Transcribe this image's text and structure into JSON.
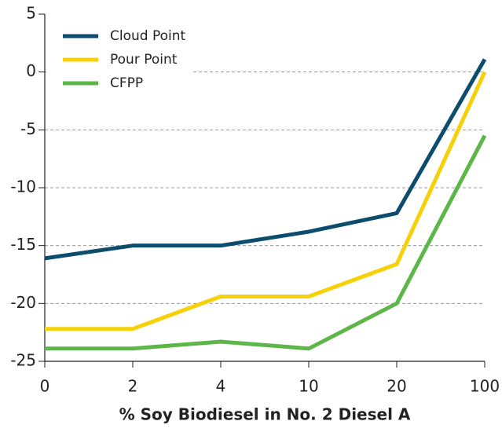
{
  "chart_data": {
    "type": "line",
    "x_label": "% Soy Biodiesel in No. 2 Diesel A",
    "categories": [
      "0",
      "2",
      "4",
      "10",
      "20",
      "100"
    ],
    "series": [
      {
        "name": "Cloud Point",
        "color": "#0c4d6d",
        "values": [
          -16.1,
          -15,
          -15,
          -13.8,
          -12.2,
          1.1
        ]
      },
      {
        "name": "Pour Point",
        "color": "#f6d10a",
        "values": [
          -22.2,
          -22.2,
          -19.4,
          -19.4,
          -16.6,
          0
        ]
      },
      {
        "name": "CFPP",
        "color": "#5db748",
        "values": [
          -23.9,
          -23.9,
          -23.3,
          -23.9,
          -20,
          -5.5
        ]
      }
    ],
    "ylim": [
      -25,
      5
    ],
    "yticks": [
      -25,
      -20,
      -15,
      -10,
      -5,
      0,
      5
    ],
    "grid": true,
    "legend": "top-left"
  }
}
